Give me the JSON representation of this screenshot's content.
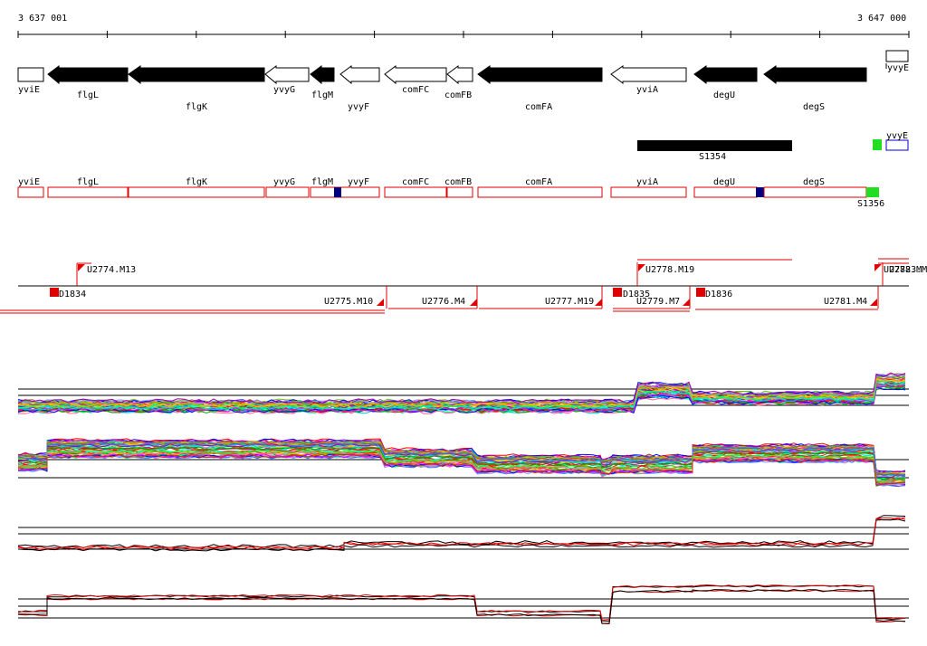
{
  "coords": {
    "start_label": "3 637 001",
    "end_label": "3 647 000"
  },
  "colors": {
    "gene_fill": "#000000",
    "outline": "#000000",
    "red": "#e00000",
    "navy": "#000080",
    "green": "#22dd22",
    "blue": "#0000cc"
  },
  "genes": [
    {
      "name": "yviE",
      "strand": "-",
      "fill": "white"
    },
    {
      "name": "flgL",
      "strand": "-",
      "fill": "black"
    },
    {
      "name": "flgK",
      "strand": "-",
      "fill": "black"
    },
    {
      "name": "yvyG",
      "strand": "-",
      "fill": "white"
    },
    {
      "name": "flgM",
      "strand": "-",
      "fill": "black"
    },
    {
      "name": "yvyF",
      "strand": "-",
      "fill": "white"
    },
    {
      "name": "comFC",
      "strand": "-",
      "fill": "white"
    },
    {
      "name": "comFB",
      "strand": "-",
      "fill": "white"
    },
    {
      "name": "comFA",
      "strand": "-",
      "fill": "black"
    },
    {
      "name": "yviA",
      "strand": "-",
      "fill": "white"
    },
    {
      "name": "degU",
      "strand": "-",
      "fill": "black"
    },
    {
      "name": "degS",
      "strand": "-",
      "fill": "black"
    },
    {
      "name": "yvyE",
      "strand": "+",
      "fill": "white"
    }
  ],
  "features": [
    {
      "name": "S1354",
      "type": "black-bar"
    },
    {
      "name": "S1356",
      "type": "green"
    }
  ],
  "domains": [
    "yviE",
    "flgL",
    "flgK",
    "yvyG",
    "flgM",
    "yvyF",
    "comFC",
    "comFB",
    "comFA",
    "yviA",
    "degU",
    "degS"
  ],
  "transcripts": [
    {
      "name": "D1834"
    },
    {
      "name": "U2774.M13"
    },
    {
      "name": "U2775.M10"
    },
    {
      "name": "U2776.M4"
    },
    {
      "name": "U2777.M19"
    },
    {
      "name": "D1835"
    },
    {
      "name": "U2778.M19"
    },
    {
      "name": "U2779.M7"
    },
    {
      "name": "D1836"
    },
    {
      "name": "U2781.M4"
    },
    {
      "name": "U2782.M"
    },
    {
      "name": "U2783.M"
    }
  ]
}
